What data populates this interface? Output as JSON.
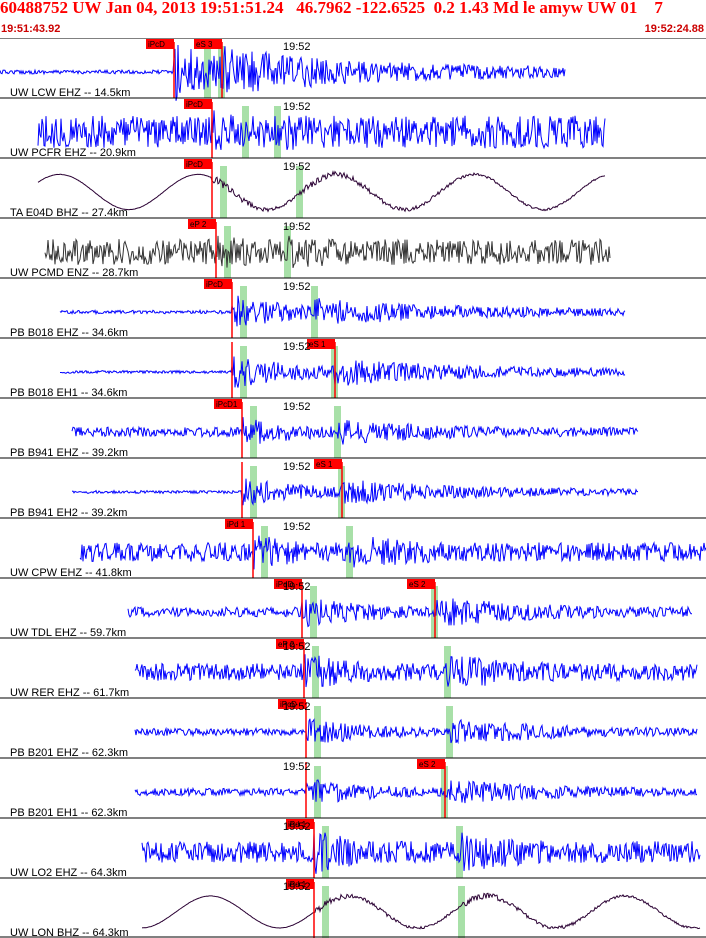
{
  "header": {
    "title": "60488752 UW Jan 04, 2013 19:51:51.24   46.7962 -122.6525  0.2 1.43 Md le amyw UW 01    7",
    "start_time": "19:51:43.92",
    "end_time": "19:52:24.88"
  },
  "time_tick_label": "19:52",
  "colors": {
    "title": "#ff0000",
    "trace_blue": "#0000ff",
    "trace_dark": "#2a0033",
    "trace_gray": "#333333",
    "pick_marker": "#ff0000",
    "phase_window": "#a8e0a8",
    "grid": "#000000"
  },
  "panels": [
    {
      "label": "UW LCW EHZ -- 14.5km",
      "pick": "iPcD",
      "pick2": "eS 3",
      "color": "blue"
    },
    {
      "label": "UW PCFR EHZ -- 20.9km",
      "pick": "iPcD",
      "pick2": "",
      "color": "blue"
    },
    {
      "label": "TA E04D BHZ -- 27.4km",
      "pick": "iPcD",
      "pick2": "",
      "color": "dark"
    },
    {
      "label": "UW PCMD ENZ -- 28.7km",
      "pick": "eP 2",
      "pick2": "",
      "color": "gray"
    },
    {
      "label": "PB B018 EHZ -- 34.6km",
      "pick": "iPcD",
      "pick2": "",
      "color": "blue"
    },
    {
      "label": "PB B018 EH1 -- 34.6km",
      "pick": "",
      "pick2": "eS 1",
      "color": "blue"
    },
    {
      "label": "PB B941 EHZ -- 39.2km",
      "pick": "iPcD1",
      "pick2": "",
      "color": "blue"
    },
    {
      "label": "PB B941 EH2 -- 39.2km",
      "pick": "",
      "pick2": "eS 1",
      "color": "blue"
    },
    {
      "label": "UW CPW EHZ -- 41.8km",
      "pick": "iPd 1",
      "pick2": "",
      "color": "blue"
    },
    {
      "label": "UW TDL EHZ -- 59.7km",
      "pick": "iPdD",
      "pick2": "eS 2",
      "color": "blue"
    },
    {
      "label": "UW RER EHZ -- 61.7km",
      "pick": "eP 2",
      "pick2": "",
      "color": "blue"
    },
    {
      "label": "PB B201 EHZ -- 62.3km",
      "pick": "iPcD",
      "pick2": "",
      "color": "blue"
    },
    {
      "label": "PB B201 EH1 -- 62.3km",
      "pick": "",
      "pick2": "eS 2",
      "color": "blue"
    },
    {
      "label": "UW LO2 EHZ -- 64.3km",
      "pick": "iPd 1",
      "pick2": "",
      "color": "blue"
    },
    {
      "label": "UW LON BHZ -- 64.3km",
      "pick": "iPd 1",
      "pick2": "",
      "color": "dark"
    }
  ]
}
